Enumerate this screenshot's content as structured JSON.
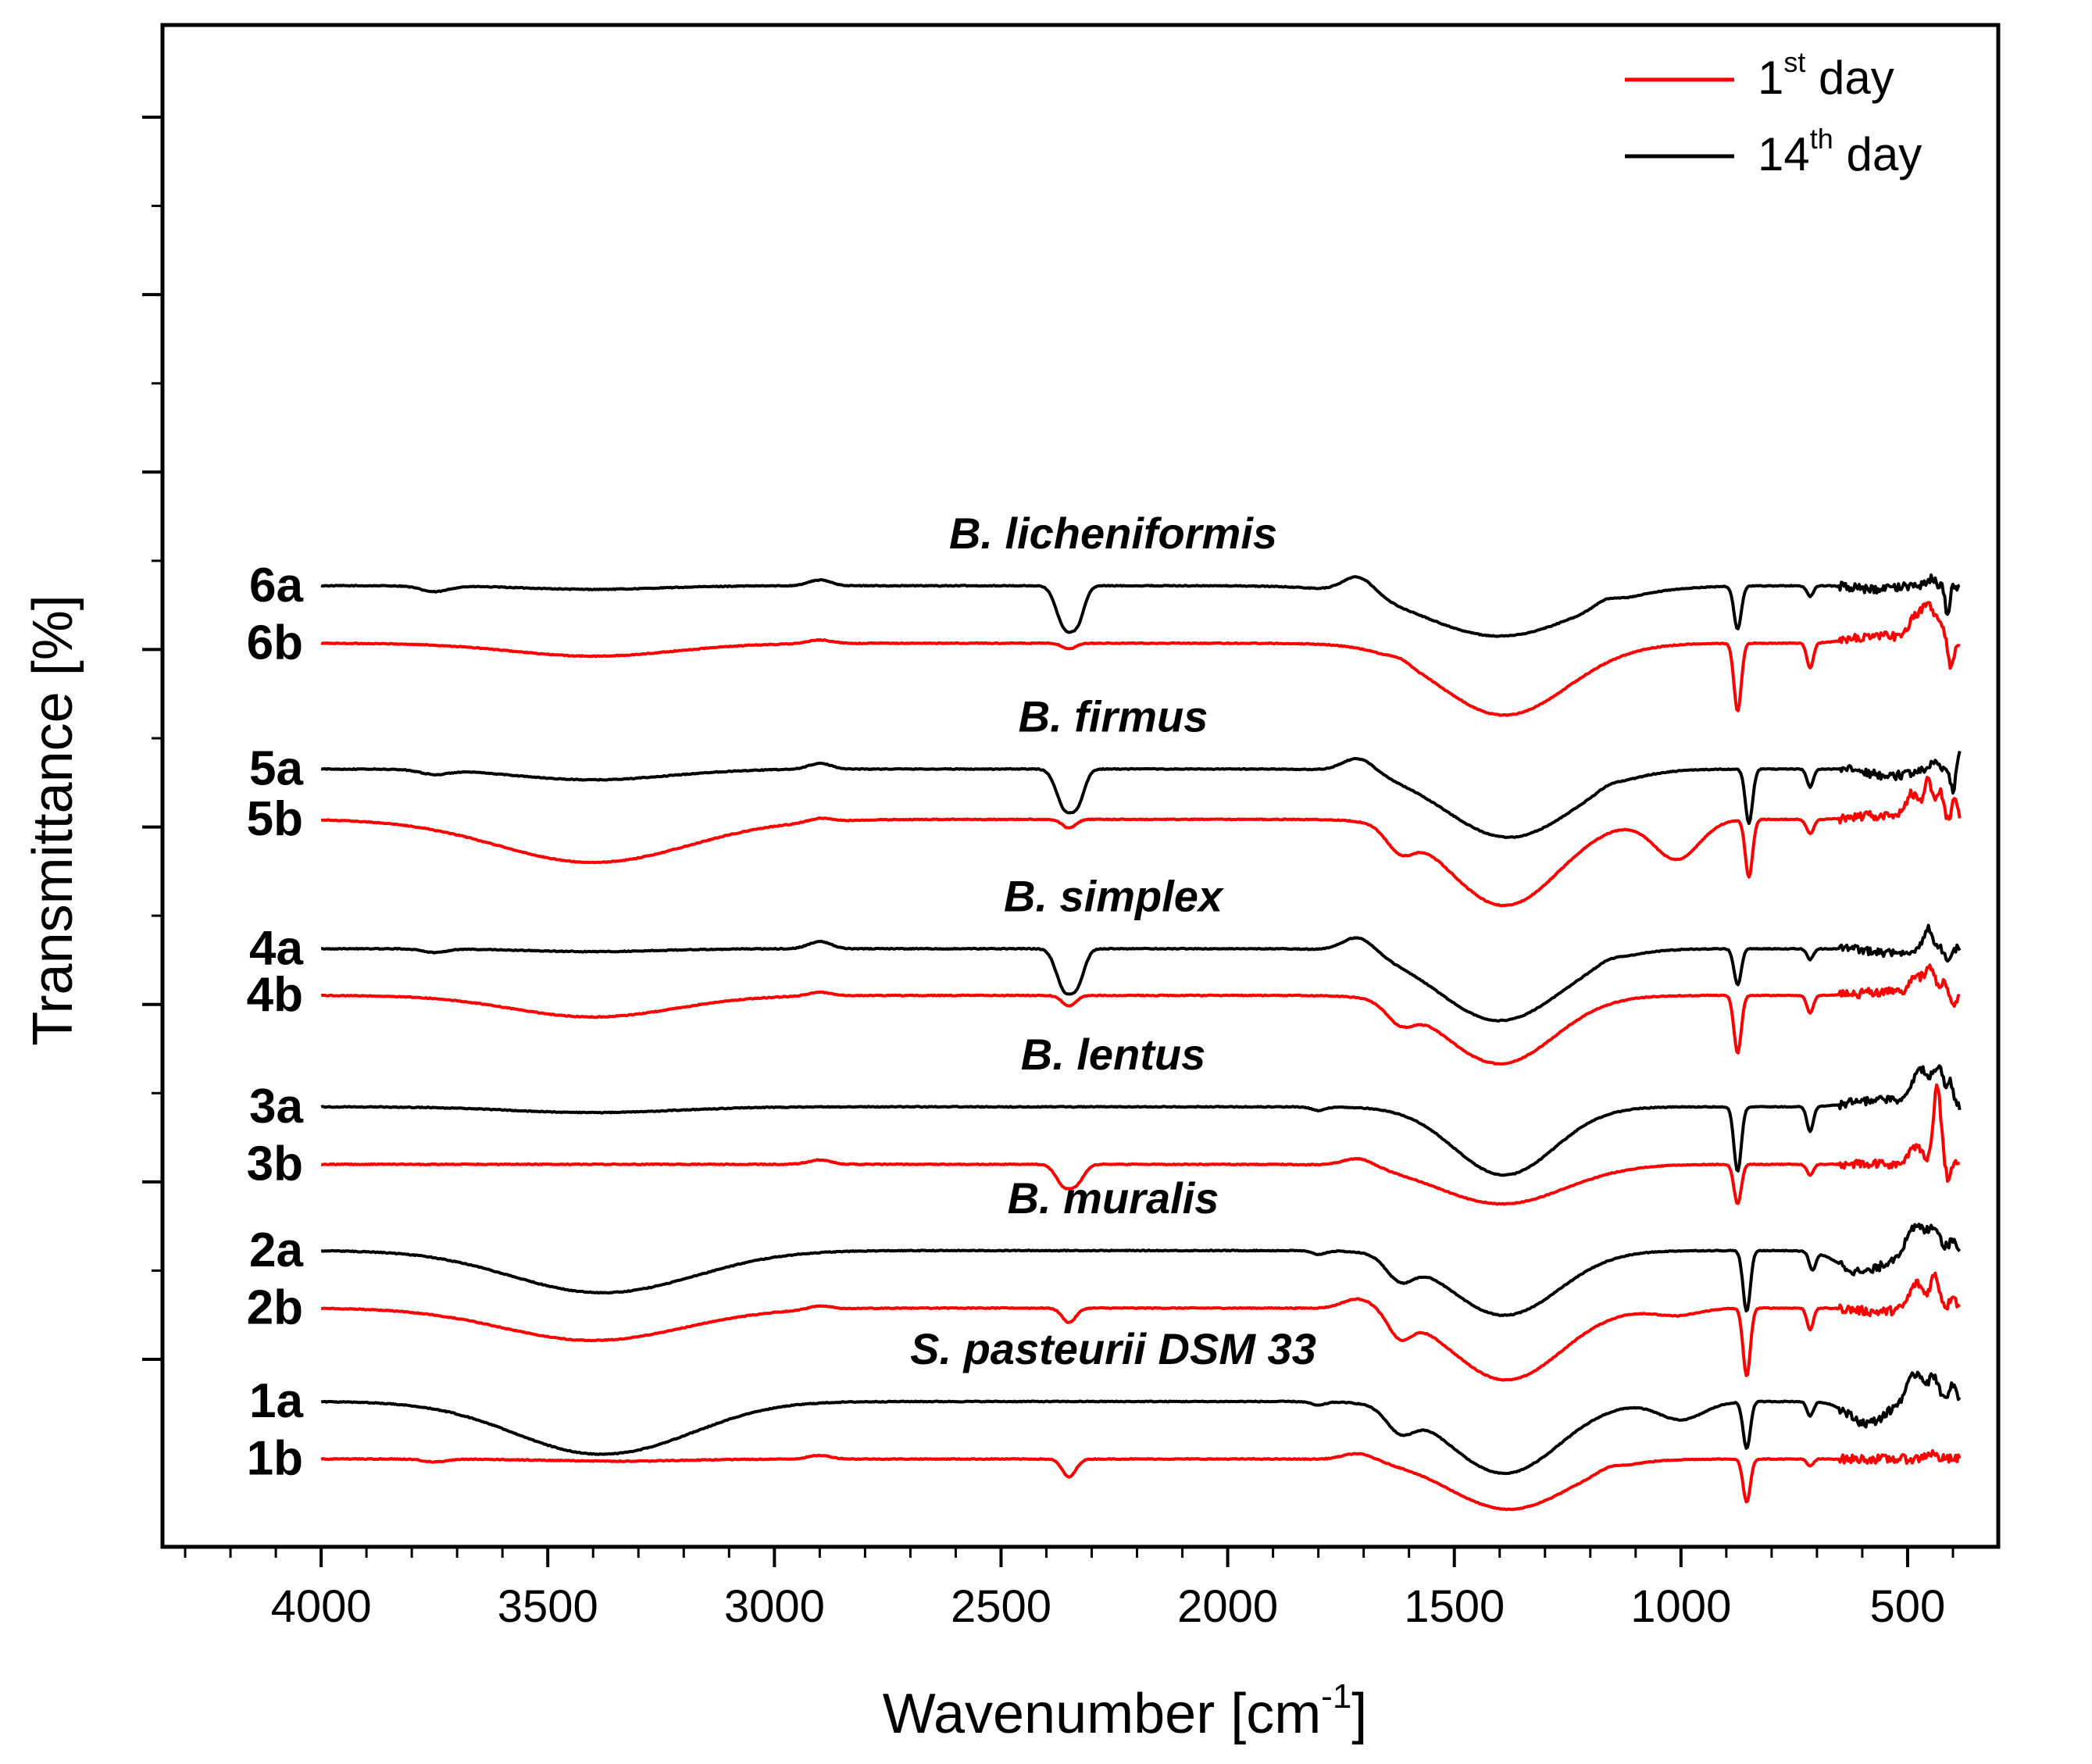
{
  "chart_data": {
    "type": "line",
    "title": "",
    "xlabel": "Wavenumber [cm-1]",
    "xlabel_parts": {
      "main": "Wavenumber [cm",
      "sup": "-1",
      "close": "]"
    },
    "ylabel": "Transmittance [%]",
    "xlim": [
      4350,
      300
    ],
    "x_ticks": [
      4000,
      3500,
      3000,
      2500,
      2000,
      1500,
      1000,
      500
    ],
    "y_tick_count": 8,
    "grid": false,
    "legend": {
      "position": "top-right",
      "entries": [
        {
          "id": "first",
          "num": "1",
          "sup": "st",
          "rest": " day",
          "text": "1st day",
          "color": "#ff0000"
        },
        {
          "id": "fourteenth",
          "num": "14",
          "sup": "th",
          "rest": " day",
          "text": "14th day",
          "color": "#000000"
        }
      ]
    },
    "groups": [
      {
        "organism": "B. licheniformis",
        "day14_label": "6a",
        "day1_label": "6b"
      },
      {
        "organism": "B. firmus",
        "day14_label": "5a",
        "day1_label": "5b"
      },
      {
        "organism": "B. simplex",
        "day14_label": "4a",
        "day1_label": "4b"
      },
      {
        "organism": "B. lentus",
        "day14_label": "3a",
        "day1_label": "3b"
      },
      {
        "organism": "B. muralis",
        "day14_label": "2a",
        "day1_label": "2b"
      },
      {
        "organism": "S. pasteurii DSM 33",
        "day14_label": "1a",
        "day1_label": "1b"
      }
    ],
    "series": [
      {
        "name": "6a",
        "color": "#000000",
        "baseline": 10.6,
        "features": [
          [
            3750,
            0.08,
            30
          ],
          [
            3400,
            0.05,
            150
          ],
          [
            2900,
            -0.08,
            25
          ],
          [
            2360,
            0.55,
            18
          ],
          [
            2330,
            0.42,
            15
          ],
          [
            1710,
            -0.25,
            35
          ],
          [
            1400,
            0.7,
            170
          ],
          [
            1165,
            -0.08,
            25
          ],
          [
            875,
            0.6,
            8
          ],
          [
            715,
            0.15,
            7
          ],
          [
            570,
            0.05,
            40
          ],
          [
            450,
            -0.1,
            10
          ],
          [
            412,
            0.4,
            5
          ]
        ]
      },
      {
        "name": "6b",
        "color": "#ff0000",
        "baseline": 9.8,
        "features": [
          [
            3400,
            0.18,
            180
          ],
          [
            2900,
            -0.05,
            25
          ],
          [
            2350,
            0.08,
            15
          ],
          [
            1620,
            -0.05,
            20
          ],
          [
            1390,
            1.0,
            140
          ],
          [
            875,
            0.95,
            8
          ],
          [
            715,
            0.35,
            7
          ],
          [
            560,
            -0.1,
            60
          ],
          [
            480,
            -0.35,
            15
          ],
          [
            455,
            -0.45,
            10
          ],
          [
            430,
            -0.3,
            10
          ],
          [
            405,
            0.35,
            6
          ]
        ]
      },
      {
        "name": "5a",
        "color": "#000000",
        "baseline": 8.05,
        "features": [
          [
            3750,
            0.06,
            30
          ],
          [
            3400,
            0.15,
            170
          ],
          [
            2900,
            -0.08,
            25
          ],
          [
            2360,
            0.52,
            18
          ],
          [
            2330,
            0.4,
            15
          ],
          [
            1710,
            -0.2,
            35
          ],
          [
            1380,
            0.95,
            140
          ],
          [
            1160,
            -0.05,
            25
          ],
          [
            850,
            0.75,
            8
          ],
          [
            715,
            0.25,
            7
          ],
          [
            540,
            0.1,
            40
          ],
          [
            440,
            -0.1,
            10
          ],
          [
            400,
            0.3,
            5
          ],
          [
            385,
            -0.2,
            5
          ]
        ]
      },
      {
        "name": "5b",
        "color": "#ff0000",
        "baseline": 7.35,
        "features": [
          [
            3400,
            0.6,
            210
          ],
          [
            2900,
            -0.05,
            25
          ],
          [
            2350,
            0.12,
            15
          ],
          [
            1620,
            0.3,
            30
          ],
          [
            1390,
            1.2,
            120
          ],
          [
            1010,
            0.55,
            50
          ],
          [
            850,
            0.8,
            8
          ],
          [
            715,
            0.2,
            8
          ],
          [
            580,
            -0.05,
            40
          ],
          [
            490,
            -0.35,
            15
          ],
          [
            455,
            -0.55,
            8
          ],
          [
            430,
            -0.4,
            8
          ],
          [
            395,
            -0.3,
            6
          ]
        ]
      },
      {
        "name": "4a",
        "color": "#000000",
        "baseline": 5.55,
        "features": [
          [
            3750,
            0.05,
            25
          ],
          [
            3400,
            0.04,
            150
          ],
          [
            2900,
            -0.1,
            25
          ],
          [
            2360,
            0.55,
            18
          ],
          [
            2330,
            0.4,
            15
          ],
          [
            1710,
            -0.22,
            35
          ],
          [
            1400,
            1.0,
            135
          ],
          [
            1160,
            -0.05,
            25
          ],
          [
            875,
            0.5,
            8
          ],
          [
            715,
            0.15,
            7
          ],
          [
            550,
            0.05,
            40
          ],
          [
            455,
            -0.3,
            10
          ],
          [
            410,
            0.15,
            6
          ]
        ]
      },
      {
        "name": "4b",
        "color": "#ff0000",
        "baseline": 4.9,
        "features": [
          [
            3400,
            0.3,
            180
          ],
          [
            2900,
            -0.05,
            25
          ],
          [
            2350,
            0.15,
            15
          ],
          [
            1620,
            0.25,
            30
          ],
          [
            1400,
            0.95,
            120
          ],
          [
            875,
            0.8,
            8
          ],
          [
            715,
            0.25,
            7
          ],
          [
            550,
            -0.05,
            50
          ],
          [
            480,
            -0.25,
            15
          ],
          [
            450,
            -0.35,
            10
          ],
          [
            420,
            -0.2,
            8
          ],
          [
            400,
            0.15,
            6
          ]
        ]
      },
      {
        "name": "3a",
        "color": "#000000",
        "baseline": 3.35,
        "features": [
          [
            3400,
            0.08,
            180
          ],
          [
            1800,
            0.05,
            15
          ],
          [
            1390,
            0.95,
            110
          ],
          [
            875,
            0.9,
            8
          ],
          [
            715,
            0.35,
            7
          ],
          [
            560,
            -0.1,
            60
          ],
          [
            470,
            -0.5,
            20
          ],
          [
            430,
            -0.45,
            12
          ],
          [
            405,
            -0.3,
            6
          ]
        ]
      },
      {
        "name": "3b",
        "color": "#ff0000",
        "baseline": 2.55,
        "features": [
          [
            2900,
            -0.06,
            25
          ],
          [
            2360,
            0.3,
            18
          ],
          [
            2330,
            0.2,
            15
          ],
          [
            1710,
            -0.12,
            35
          ],
          [
            1395,
            0.55,
            140
          ],
          [
            875,
            0.55,
            8
          ],
          [
            715,
            0.15,
            7
          ],
          [
            480,
            -0.25,
            15
          ],
          [
            435,
            -1.1,
            8
          ],
          [
            410,
            0.25,
            5
          ]
        ]
      },
      {
        "name": "2a",
        "color": "#000000",
        "baseline": 1.35,
        "features": [
          [
            3400,
            0.55,
            190
          ],
          [
            3200,
            0.08,
            150
          ],
          [
            1800,
            0.05,
            15
          ],
          [
            1620,
            0.3,
            30
          ],
          [
            1390,
            0.9,
            120
          ],
          [
            855,
            0.85,
            8
          ],
          [
            710,
            0.25,
            7
          ],
          [
            600,
            0.3,
            50
          ],
          [
            480,
            -0.35,
            20
          ],
          [
            440,
            -0.3,
            12
          ],
          [
            400,
            -0.15,
            8
          ]
        ]
      },
      {
        "name": "2b",
        "color": "#ff0000",
        "baseline": 0.55,
        "features": [
          [
            3400,
            0.45,
            200
          ],
          [
            2900,
            -0.05,
            25
          ],
          [
            2350,
            0.2,
            15
          ],
          [
            1710,
            -0.15,
            35
          ],
          [
            1620,
            0.3,
            25
          ],
          [
            1385,
            1.0,
            120
          ],
          [
            1010,
            0.1,
            50
          ],
          [
            855,
            0.95,
            8
          ],
          [
            715,
            0.3,
            7
          ],
          [
            570,
            0.05,
            40
          ],
          [
            480,
            -0.35,
            15
          ],
          [
            440,
            -0.45,
            10
          ],
          [
            400,
            -0.2,
            6
          ]
        ]
      },
      {
        "name": "1a",
        "color": "#000000",
        "baseline": -0.75,
        "features": [
          [
            3400,
            0.7,
            180
          ],
          [
            3200,
            0.1,
            130
          ],
          [
            1800,
            0.05,
            15
          ],
          [
            1620,
            0.3,
            30
          ],
          [
            1390,
            1.0,
            120
          ],
          [
            1000,
            0.25,
            50
          ],
          [
            855,
            0.65,
            8
          ],
          [
            715,
            0.2,
            7
          ],
          [
            590,
            0.3,
            40
          ],
          [
            480,
            -0.4,
            20
          ],
          [
            440,
            -0.3,
            10
          ],
          [
            400,
            -0.25,
            6
          ]
        ]
      },
      {
        "name": "1b",
        "color": "#ff0000",
        "baseline": -1.55,
        "features": [
          [
            3750,
            0.04,
            25
          ],
          [
            3350,
            0.03,
            150
          ],
          [
            2900,
            -0.05,
            25
          ],
          [
            2350,
            0.25,
            15
          ],
          [
            1710,
            -0.1,
            35
          ],
          [
            1380,
            0.7,
            130
          ],
          [
            1160,
            -0.05,
            25
          ],
          [
            855,
            0.6,
            8
          ],
          [
            715,
            0.1,
            7
          ],
          [
            450,
            -0.08,
            12
          ]
        ]
      }
    ]
  }
}
